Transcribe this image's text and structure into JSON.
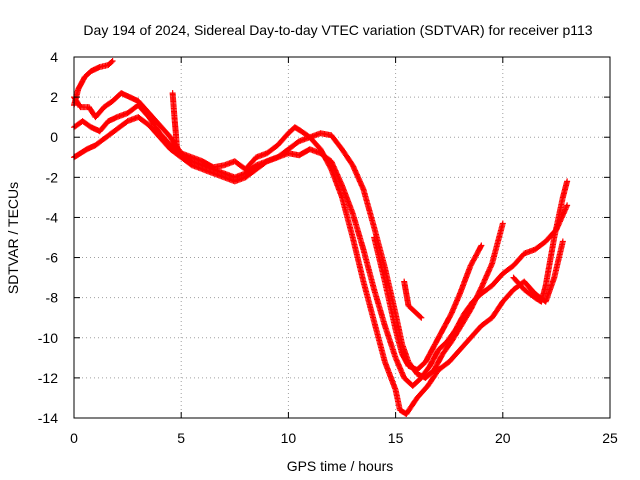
{
  "chart_data": {
    "type": "scatter",
    "title": "Day 194 of 2024, Sidereal Day-to-day VTEC variation (SDTVAR) for receiver p113",
    "xlabel": "GPS time / hours",
    "ylabel": "SDTVAR / TECUs",
    "xlim": [
      0,
      25
    ],
    "ylim": [
      -14,
      4
    ],
    "xticks": [
      "0",
      "5",
      "10",
      "15",
      "20",
      "25"
    ],
    "yticks": [
      "-14",
      "-12",
      "-10",
      "-8",
      "-6",
      "-4",
      "-2",
      "0",
      "2",
      "4"
    ],
    "grid": true,
    "legend": "none",
    "marker": "+",
    "color": "#ff0000",
    "series": [
      {
        "x": [
          0.0,
          0.2,
          0.5,
          0.8,
          1.2,
          1.6,
          1.8
        ],
        "y": [
          1.6,
          2.4,
          3.0,
          3.3,
          3.5,
          3.6,
          3.8
        ]
      },
      {
        "x": [
          0.0,
          0.3,
          0.7,
          1.0,
          1.4,
          1.8,
          2.2,
          2.6,
          3.0,
          3.5,
          4.0,
          4.5,
          5.0,
          5.5,
          6.0,
          6.5,
          7.0,
          7.5,
          8.0,
          8.5,
          9.0,
          9.5,
          10.0,
          10.3,
          10.6,
          11.0,
          11.5,
          12.0,
          12.5,
          13.0,
          13.5,
          14.0,
          14.5,
          15.0,
          15.3,
          15.6,
          16.0,
          16.4,
          16.8,
          17.2,
          17.6,
          18.0,
          18.5,
          19.0,
          19.5,
          20.0
        ],
        "y": [
          2.0,
          1.5,
          1.5,
          1.0,
          1.5,
          1.8,
          2.2,
          2.0,
          1.8,
          1.2,
          0.6,
          0.0,
          -0.8,
          -1.0,
          -1.2,
          -1.5,
          -1.4,
          -1.2,
          -1.6,
          -1.0,
          -0.8,
          -0.4,
          0.2,
          0.5,
          0.3,
          0.0,
          0.2,
          0.1,
          -0.6,
          -1.4,
          -2.6,
          -4.5,
          -6.5,
          -8.8,
          -10.3,
          -11.2,
          -11.8,
          -12.0,
          -11.6,
          -10.8,
          -10.2,
          -9.5,
          -8.6,
          -7.5,
          -6.3,
          -4.3
        ]
      },
      {
        "x": [
          0.0,
          0.4,
          0.8,
          1.2,
          1.6,
          2.0,
          2.5,
          3.0,
          3.5,
          4.0,
          4.5,
          5.0,
          5.5,
          6.0,
          6.5,
          7.0,
          7.5,
          8.0,
          8.5,
          9.0,
          9.5,
          10.0,
          10.5,
          11.0,
          11.5,
          12.0,
          12.5,
          13.0,
          13.5,
          14.0,
          14.5,
          15.0,
          15.4,
          15.8,
          16.2,
          16.6,
          17.0,
          17.4,
          17.8,
          18.2,
          18.6,
          19.0,
          19.5,
          20.0,
          20.5,
          21.0,
          21.5,
          22.0,
          22.5,
          23.0
        ],
        "y": [
          0.5,
          0.8,
          0.5,
          0.3,
          0.8,
          1.0,
          1.2,
          1.6,
          1.0,
          0.2,
          -0.4,
          -0.8,
          -1.2,
          -1.4,
          -1.6,
          -1.8,
          -2.0,
          -1.8,
          -1.4,
          -1.2,
          -1.0,
          -0.8,
          -0.9,
          -0.6,
          -0.8,
          -1.2,
          -2.4,
          -3.8,
          -5.6,
          -7.6,
          -9.4,
          -11.0,
          -12.0,
          -12.4,
          -12.0,
          -11.4,
          -10.6,
          -10.2,
          -9.6,
          -8.8,
          -8.2,
          -7.8,
          -7.4,
          -6.8,
          -6.4,
          -5.8,
          -5.6,
          -5.2,
          -4.6,
          -3.4
        ]
      },
      {
        "x": [
          0.0,
          0.3,
          0.6,
          1.0,
          1.5,
          2.0,
          2.5,
          3.0,
          3.5,
          4.0,
          4.5,
          5.0,
          5.5,
          6.0,
          6.5,
          7.0,
          7.5,
          8.0,
          8.5,
          9.0,
          9.5,
          10.0,
          10.5,
          11.0,
          11.5,
          12.0,
          12.5,
          13.0,
          13.5,
          14.0,
          14.5,
          15.0,
          15.2,
          15.5,
          16.0,
          16.5,
          17.0,
          17.5,
          18.0,
          18.5,
          19.0,
          19.5,
          20.0,
          20.5,
          21.0,
          21.5,
          22.0,
          22.4,
          22.8
        ],
        "y": [
          -1.0,
          -0.8,
          -0.6,
          -0.4,
          0.0,
          0.4,
          0.8,
          1.0,
          0.6,
          0.0,
          -0.6,
          -1.0,
          -1.4,
          -1.6,
          -1.8,
          -2.0,
          -2.2,
          -2.0,
          -1.6,
          -1.2,
          -1.0,
          -0.6,
          -0.2,
          0.0,
          -0.6,
          -1.6,
          -3.0,
          -5.0,
          -7.2,
          -9.2,
          -11.2,
          -12.6,
          -13.6,
          -13.8,
          -13.0,
          -12.4,
          -11.6,
          -11.2,
          -10.6,
          -10.0,
          -9.4,
          -9.0,
          -8.2,
          -7.6,
          -7.2,
          -7.8,
          -8.2,
          -7.0,
          -5.2
        ]
      },
      {
        "x": [
          4.6,
          4.65,
          4.7,
          4.75,
          4.8
        ],
        "y": [
          2.2,
          1.5,
          0.8,
          0.2,
          -0.5
        ]
      },
      {
        "x": [
          14.0,
          14.5,
          15.0,
          15.3,
          15.6,
          16.0,
          16.4,
          16.8,
          17.2,
          17.6,
          18.0,
          18.5,
          19.0
        ],
        "y": [
          -5.0,
          -7.2,
          -9.6,
          -10.8,
          -11.4,
          -11.6,
          -11.2,
          -10.4,
          -9.6,
          -8.8,
          -7.8,
          -6.4,
          -5.4
        ]
      },
      {
        "x": [
          15.4,
          15.5,
          15.6,
          15.8,
          16.0,
          16.2
        ],
        "y": [
          -7.2,
          -7.8,
          -8.4,
          -8.6,
          -8.8,
          -9.0
        ]
      },
      {
        "x": [
          20.5,
          21.0,
          21.5,
          21.8,
          22.0,
          22.2,
          22.4,
          22.6,
          22.8,
          23.0
        ],
        "y": [
          -7.0,
          -7.6,
          -8.0,
          -8.2,
          -7.4,
          -6.2,
          -5.0,
          -4.0,
          -3.0,
          -2.2
        ]
      }
    ]
  }
}
